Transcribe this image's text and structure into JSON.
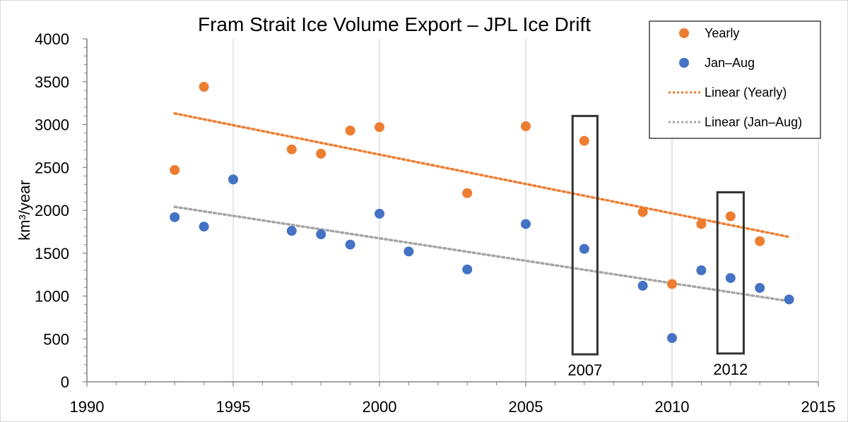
{
  "chart_data": {
    "type": "scatter",
    "title": "Fram Strait Ice Volume Export – JPL Ice Drift",
    "ylabel": "km³/year",
    "xlabel": "",
    "xlim": [
      1990,
      2015
    ],
    "ylim": [
      0,
      4000
    ],
    "x_ticks": [
      1990,
      1995,
      2000,
      2005,
      2010,
      2015
    ],
    "y_ticks": [
      0,
      500,
      1000,
      1500,
      2000,
      2500,
      3000,
      3500,
      4000
    ],
    "grid": "vertical major gridlines",
    "legend_position": "top-right",
    "series": [
      {
        "name": "Yearly",
        "color": "#ED7D31",
        "points": [
          {
            "x": 1993,
            "y": 2470
          },
          {
            "x": 1994,
            "y": 3440
          },
          {
            "x": 1997,
            "y": 2710
          },
          {
            "x": 1998,
            "y": 2660
          },
          {
            "x": 1999,
            "y": 2930
          },
          {
            "x": 2000,
            "y": 2970
          },
          {
            "x": 2003,
            "y": 2200
          },
          {
            "x": 2005,
            "y": 2980
          },
          {
            "x": 2007,
            "y": 2810
          },
          {
            "x": 2009,
            "y": 1980
          },
          {
            "x": 2010,
            "y": 1140
          },
          {
            "x": 2011,
            "y": 1840
          },
          {
            "x": 2012,
            "y": 1930
          },
          {
            "x": 2013,
            "y": 1640
          }
        ]
      },
      {
        "name": "Jan–Aug",
        "color": "#4472C4",
        "points": [
          {
            "x": 1993,
            "y": 1920
          },
          {
            "x": 1994,
            "y": 1810
          },
          {
            "x": 1995,
            "y": 2360
          },
          {
            "x": 1997,
            "y": 1760
          },
          {
            "x": 1998,
            "y": 1720
          },
          {
            "x": 1999,
            "y": 1600
          },
          {
            "x": 2000,
            "y": 1960
          },
          {
            "x": 2001,
            "y": 1520
          },
          {
            "x": 2003,
            "y": 1310
          },
          {
            "x": 2005,
            "y": 1840
          },
          {
            "x": 2007,
            "y": 1550
          },
          {
            "x": 2009,
            "y": 1120
          },
          {
            "x": 2010,
            "y": 510
          },
          {
            "x": 2011,
            "y": 1300
          },
          {
            "x": 2012,
            "y": 1210
          },
          {
            "x": 2013,
            "y": 1095
          },
          {
            "x": 2014,
            "y": 960
          }
        ]
      }
    ],
    "trendlines": [
      {
        "name": "Linear (Yearly)",
        "color": "#ED7D31",
        "start": {
          "x": 1993,
          "y": 3130
        },
        "end": {
          "x": 2014,
          "y": 1690
        }
      },
      {
        "name": "Linear (Jan–Aug)",
        "color": "#A5A5A5",
        "start": {
          "x": 1993,
          "y": 2040
        },
        "end": {
          "x": 2014,
          "y": 940
        }
      }
    ],
    "highlights": [
      {
        "label": "2007",
        "x_range": [
          2006.6,
          2007.45
        ],
        "y_range": [
          320,
          3100
        ]
      },
      {
        "label": "2012",
        "x_range": [
          2011.55,
          2012.45
        ],
        "y_range": [
          330,
          2210
        ]
      }
    ]
  }
}
